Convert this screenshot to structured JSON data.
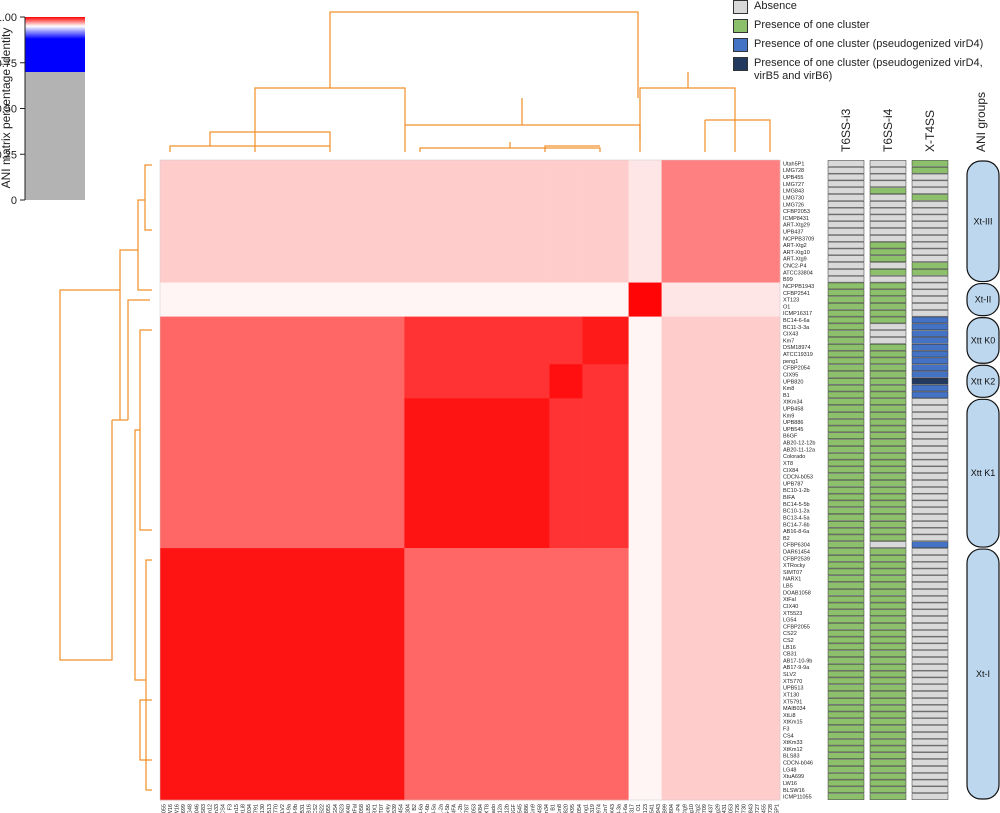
{
  "chart_data": {
    "type": "heatmap",
    "colorbar": {
      "title": "ANI matrix percentage identity",
      "ylim": [
        0,
        1
      ],
      "yticks": [
        {
          "value": 0,
          "label": "0"
        },
        {
          "value": 0.25,
          "label": "0.25"
        },
        {
          "value": 0.5,
          "label": "0.50"
        },
        {
          "value": 0.75,
          "label": "0.75"
        },
        {
          "value": 1,
          "label": "1.00"
        }
      ],
      "stops": [
        {
          "value": 0,
          "color": "#b3b3b3"
        },
        {
          "value": 0.7,
          "color": "#b3b3b3"
        },
        {
          "value": 0.7,
          "color": "#0000ff"
        },
        {
          "value": 0.88,
          "color": "#0000ff"
        },
        {
          "value": 0.95,
          "color": "#ffffff"
        },
        {
          "value": 1,
          "color": "#ff0000"
        }
      ]
    },
    "gene_columns": [
      "T6SS-i3",
      "T6SS-i4",
      "X-T4SS"
    ],
    "groups_title": "ANI groups",
    "presence_legend": [
      {
        "label": "Absence",
        "color": "#d9d9d9"
      },
      {
        "label": "Presence of one cluster",
        "color": "#8cc06a"
      },
      {
        "label": "Presence of one cluster (pseudogenized virD4)",
        "color": "#4472c4"
      },
      {
        "label": "Presence of one cluster (pseudogenized virD4, virB5 and virB6)",
        "color": "#233a5e"
      }
    ],
    "groups": [
      {
        "label": "Xt-III",
        "strains": [
          "Utah5P1",
          "LMG728",
          "UPB455",
          "LMG727",
          "LMG843",
          "LMG730",
          "LMG726",
          "CFBP2053",
          "ICMP8431",
          "ART-Xtg29",
          "UPB437",
          "NCPPB3709",
          "ART-Xtg2",
          "ART-Xtg10",
          "ART-Xtg9",
          "CNC2-P4",
          "ATCC33804",
          "B99"
        ],
        "presence": [
          [
            0,
            0,
            0,
            0,
            0,
            0,
            0,
            0,
            0,
            0,
            0,
            0,
            0,
            0,
            0,
            0,
            0,
            0
          ],
          [
            0,
            0,
            0,
            0,
            1,
            0,
            0,
            0,
            0,
            0,
            0,
            0,
            1,
            1,
            1,
            0,
            1,
            0
          ],
          [
            1,
            1,
            0,
            0,
            0,
            1,
            0,
            0,
            0,
            0,
            0,
            0,
            0,
            0,
            0,
            1,
            1,
            0
          ]
        ]
      },
      {
        "label": "Xt-II",
        "strains": [
          "NCPPB1943",
          "CFBP2541",
          "XT123",
          "O1",
          "ICMP16317"
        ],
        "presence": [
          [
            1,
            1,
            1,
            1,
            1
          ],
          [
            1,
            1,
            1,
            1,
            1
          ],
          [
            0,
            0,
            0,
            0,
            0
          ]
        ]
      },
      {
        "label": "Xtt K0",
        "strains": [
          "BC14-6-6a",
          "BC11-3-3a",
          "CIX43",
          "Km7",
          "DSM18974",
          "ATCC19319",
          "peng1"
        ],
        "presence": [
          [
            1,
            1,
            1,
            1,
            1,
            1,
            1
          ],
          [
            1,
            0,
            0,
            0,
            1,
            1,
            1
          ],
          [
            2,
            2,
            2,
            2,
            2,
            2,
            2
          ]
        ]
      },
      {
        "label": "Xtt K2",
        "strains": [
          "CFBP2054",
          "CIX95",
          "UPB820",
          "Km8",
          "B1"
        ],
        "presence": [
          [
            1,
            1,
            1,
            1,
            1
          ],
          [
            1,
            1,
            1,
            1,
            1
          ],
          [
            2,
            2,
            3,
            2,
            2
          ]
        ]
      },
      {
        "label": "Xtt K1",
        "strains": [
          "XtKm34",
          "UPB458",
          "Km9",
          "UPB886",
          "UPB545",
          "B6GF",
          "AB20-12-12b",
          "AB20-11-12a",
          "Colorado",
          "XT8",
          "CIX84",
          "CDCN-b053",
          "UPB787",
          "BC10-1-2b",
          "BIFA",
          "BC14-5-5b",
          "BC10-1-2a",
          "BC13-4-5a",
          "BC14-7-6b",
          "AB16-8-6a",
          "B2",
          "CFBP6304"
        ],
        "presence": [
          [
            1,
            1,
            1,
            1,
            1,
            1,
            1,
            1,
            1,
            1,
            1,
            1,
            1,
            1,
            1,
            1,
            1,
            1,
            1,
            1,
            1,
            1
          ],
          [
            1,
            1,
            1,
            1,
            1,
            1,
            1,
            1,
            1,
            1,
            1,
            1,
            1,
            1,
            1,
            1,
            1,
            1,
            1,
            1,
            1,
            0
          ],
          [
            0,
            0,
            0,
            0,
            0,
            0,
            0,
            0,
            0,
            0,
            0,
            0,
            0,
            0,
            0,
            0,
            0,
            0,
            0,
            0,
            0,
            2
          ]
        ]
      },
      {
        "label": "Xt-I",
        "strains": [
          "DAR61454",
          "CFBP2539",
          "XTRocky",
          "SIMT07",
          "NARX1",
          "LB5",
          "DOAB1058",
          "XtFal",
          "CIX40",
          "XT5523",
          "LG54",
          "CFBP2055",
          "CS22",
          "CS2",
          "LB16",
          "CB31",
          "AB17-10-9b",
          "AB17-9-9a",
          "SLV2",
          "XT5770",
          "UPB513",
          "XT130",
          "XT5791",
          "MAIB034",
          "XtLi8",
          "XtKm15",
          "F3",
          "CS4",
          "XtKm33",
          "XtKm12",
          "BLS83",
          "CDCN-b046",
          "LG48",
          "XtuA699",
          "LW16",
          "BLSW16",
          "ICMP11055"
        ],
        "presence": [
          [
            1,
            1,
            1,
            1,
            1,
            1,
            1,
            1,
            1,
            1,
            1,
            1,
            1,
            1,
            1,
            1,
            1,
            1,
            1,
            1,
            1,
            1,
            1,
            1,
            1,
            1,
            1,
            1,
            1,
            1,
            1,
            1,
            1,
            1,
            1,
            1,
            1
          ],
          [
            1,
            1,
            1,
            1,
            1,
            1,
            1,
            1,
            1,
            1,
            1,
            1,
            1,
            1,
            1,
            1,
            1,
            1,
            1,
            1,
            1,
            1,
            1,
            1,
            1,
            1,
            1,
            1,
            1,
            1,
            1,
            1,
            1,
            1,
            1,
            1,
            1
          ],
          [
            0,
            0,
            0,
            0,
            0,
            0,
            0,
            0,
            0,
            0,
            0,
            0,
            0,
            0,
            0,
            0,
            0,
            0,
            0,
            0,
            0,
            0,
            0,
            0,
            0,
            0,
            0,
            0,
            0,
            0,
            0,
            0,
            0,
            0,
            0,
            0,
            0
          ]
        ]
      }
    ],
    "ani": [
      [
        0.975,
        0.955,
        0.96,
        0.96,
        0.96,
        0.96
      ],
      [
        0.955,
        0.999,
        0.952,
        0.952,
        0.952,
        0.952
      ],
      [
        0.96,
        0.952,
        0.995,
        0.99,
        0.99,
        0.98
      ],
      [
        0.96,
        0.952,
        0.99,
        0.997,
        0.99,
        0.98
      ],
      [
        0.96,
        0.952,
        0.99,
        0.99,
        0.996,
        0.98
      ],
      [
        0.96,
        0.952,
        0.98,
        0.98,
        0.98,
        0.996
      ]
    ]
  }
}
